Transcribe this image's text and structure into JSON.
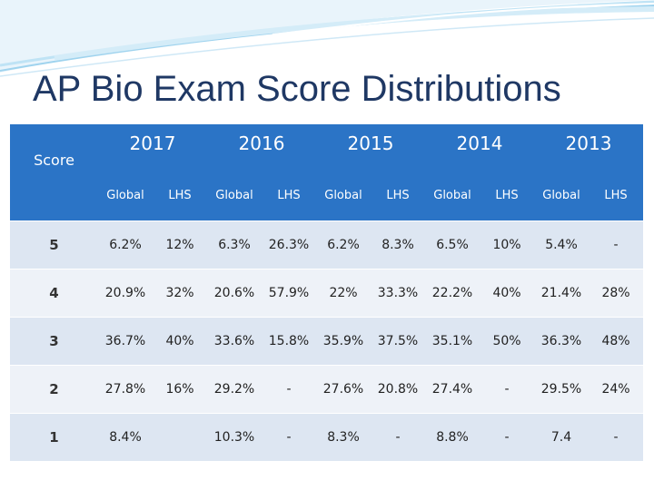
{
  "title": "AP Bio Exam Score Distributions",
  "table": {
    "score_header": "Score",
    "years": [
      "2017",
      "2016",
      "2015",
      "2014",
      "2013"
    ],
    "sub_headers": [
      "Global",
      "LHS",
      "Global",
      "LHS",
      "Global",
      "LHS",
      "Global",
      "LHS",
      "Global",
      "LHS"
    ],
    "rows": [
      {
        "score": "5",
        "cells": [
          "6.2%",
          "12%",
          "6.3%",
          "26.3%",
          "6.2%",
          "8.3%",
          "6.5%",
          "10%",
          "5.4%",
          "-"
        ]
      },
      {
        "score": "4",
        "cells": [
          "20.9%",
          "32%",
          "20.6%",
          "57.9%",
          "22%",
          "33.3%",
          "22.2%",
          "40%",
          "21.4%",
          "28%"
        ]
      },
      {
        "score": "3",
        "cells": [
          "36.7%",
          "40%",
          "33.6%",
          "15.8%",
          "35.9%",
          "37.5%",
          "35.1%",
          "50%",
          "36.3%",
          "48%"
        ]
      },
      {
        "score": "2",
        "cells": [
          "27.8%",
          "16%",
          "29.2%",
          "-",
          "27.6%",
          "20.8%",
          "27.4%",
          "-",
          "29.5%",
          "24%"
        ]
      },
      {
        "score": "1",
        "cells": [
          "8.4%",
          "",
          "10.3%",
          "-",
          "8.3%",
          "-",
          "8.8%",
          "-",
          "7.4",
          "-"
        ]
      }
    ]
  },
  "colors": {
    "title": "#1f3864",
    "header": "#2b74c6",
    "row_odd": "#dde6f2",
    "row_even": "#eef2f8"
  }
}
